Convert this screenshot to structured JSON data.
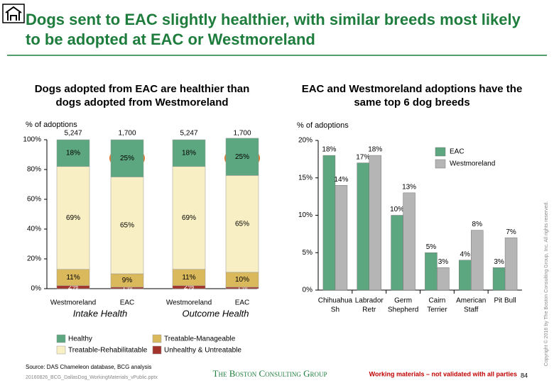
{
  "header": {
    "title": "Dogs sent to EAC slightly healthier, with similar breeds most likely to be adopted at EAC or Westmoreland"
  },
  "chart_data": [
    {
      "type": "stacked_bar",
      "title": "Dogs adopted from EAC are healthier than dogs adopted from Westmoreland",
      "y_label": "% of adoptions",
      "categories": [
        "Westmoreland",
        "EAC",
        "Westmoreland",
        "EAC"
      ],
      "group_labels": [
        "Intake Health",
        "Outcome Health"
      ],
      "totals": {
        "values": [
          5247,
          1700,
          5247,
          1700
        ],
        "value_labels": [
          "5,247",
          "1,700",
          "5,247",
          "1,700"
        ]
      },
      "series": [
        {
          "name": "Unhealthy & Untreatable",
          "color": "#a3342b",
          "label_color": "#ffffff",
          "values": [
            2,
            1,
            2,
            1
          ],
          "value_labels": [
            "2%",
            "1%",
            "2%",
            "1%"
          ]
        },
        {
          "name": "Treatable-Manageable",
          "color": "#d9b95c",
          "label_color": "#000000",
          "values": [
            11,
            9,
            11,
            10
          ],
          "value_labels": [
            "11%",
            "9%",
            "11%",
            "10%"
          ]
        },
        {
          "name": "Treatable-Rehabilitatable",
          "color": "#f8f0c4",
          "label_color": "#000000",
          "values": [
            69,
            65,
            69,
            65
          ],
          "value_labels": [
            "69%",
            "65%",
            "69%",
            "65%"
          ]
        },
        {
          "name": "Healthy",
          "color": "#5ca77f",
          "label_color": "#000000",
          "values": [
            18,
            25,
            18,
            25
          ],
          "value_labels": [
            "18%",
            "25%",
            "18%",
            "25%"
          ]
        }
      ],
      "ylim": [
        0,
        100
      ],
      "yticks": [
        {
          "value": 0,
          "label": "0%"
        },
        {
          "value": 20,
          "label": "20%"
        },
        {
          "value": 40,
          "label": "40%"
        },
        {
          "value": 60,
          "label": "60%"
        },
        {
          "value": 80,
          "label": "80%"
        },
        {
          "value": 100,
          "label": "100%"
        }
      ]
    },
    {
      "type": "bar",
      "title": "EAC and Westmoreland adoptions have the same top 6 dog breeds",
      "y_label": "% of adoptions",
      "categories": [
        [
          "Chihuahua",
          "Sh"
        ],
        [
          "Labrador",
          "Retr"
        ],
        [
          "Germ",
          "Shepherd"
        ],
        [
          "Cairn",
          "Terrier"
        ],
        [
          "American",
          "Staff"
        ],
        [
          "Pit Bull"
        ]
      ],
      "series": [
        {
          "name": "EAC",
          "color": "#5ca77f",
          "values": [
            18,
            17,
            10,
            5,
            4,
            3
          ],
          "value_labels": [
            "18%",
            "17%",
            "10%",
            "5%",
            "4%",
            "3%"
          ]
        },
        {
          "name": "Westmoreland",
          "color": "#b5b5b5",
          "values": [
            14,
            18,
            13,
            3,
            8,
            7
          ],
          "value_labels": [
            "14%",
            "18%",
            "13%",
            "3%",
            "8%",
            "7%"
          ]
        }
      ],
      "ylim": [
        0,
        20
      ],
      "yticks": [
        {
          "value": 0,
          "label": "0%"
        },
        {
          "value": 5,
          "label": "5%"
        },
        {
          "value": 10,
          "label": "10%"
        },
        {
          "value": 15,
          "label": "15%"
        },
        {
          "value": 20,
          "label": "20%"
        }
      ]
    }
  ],
  "footer": {
    "source": "Source: DAS Chameleon database, BCG analysis",
    "file": "20160826_BCG_DallasDog_WorkingMaterials_vPublic.pptx",
    "logo": "The Boston Consulting Group",
    "note": "Working materials – not validated with all parties",
    "page": "84",
    "copyright": "Copyright © 2016 by The Boston Consulting Group, Inc. All rights reserved."
  }
}
